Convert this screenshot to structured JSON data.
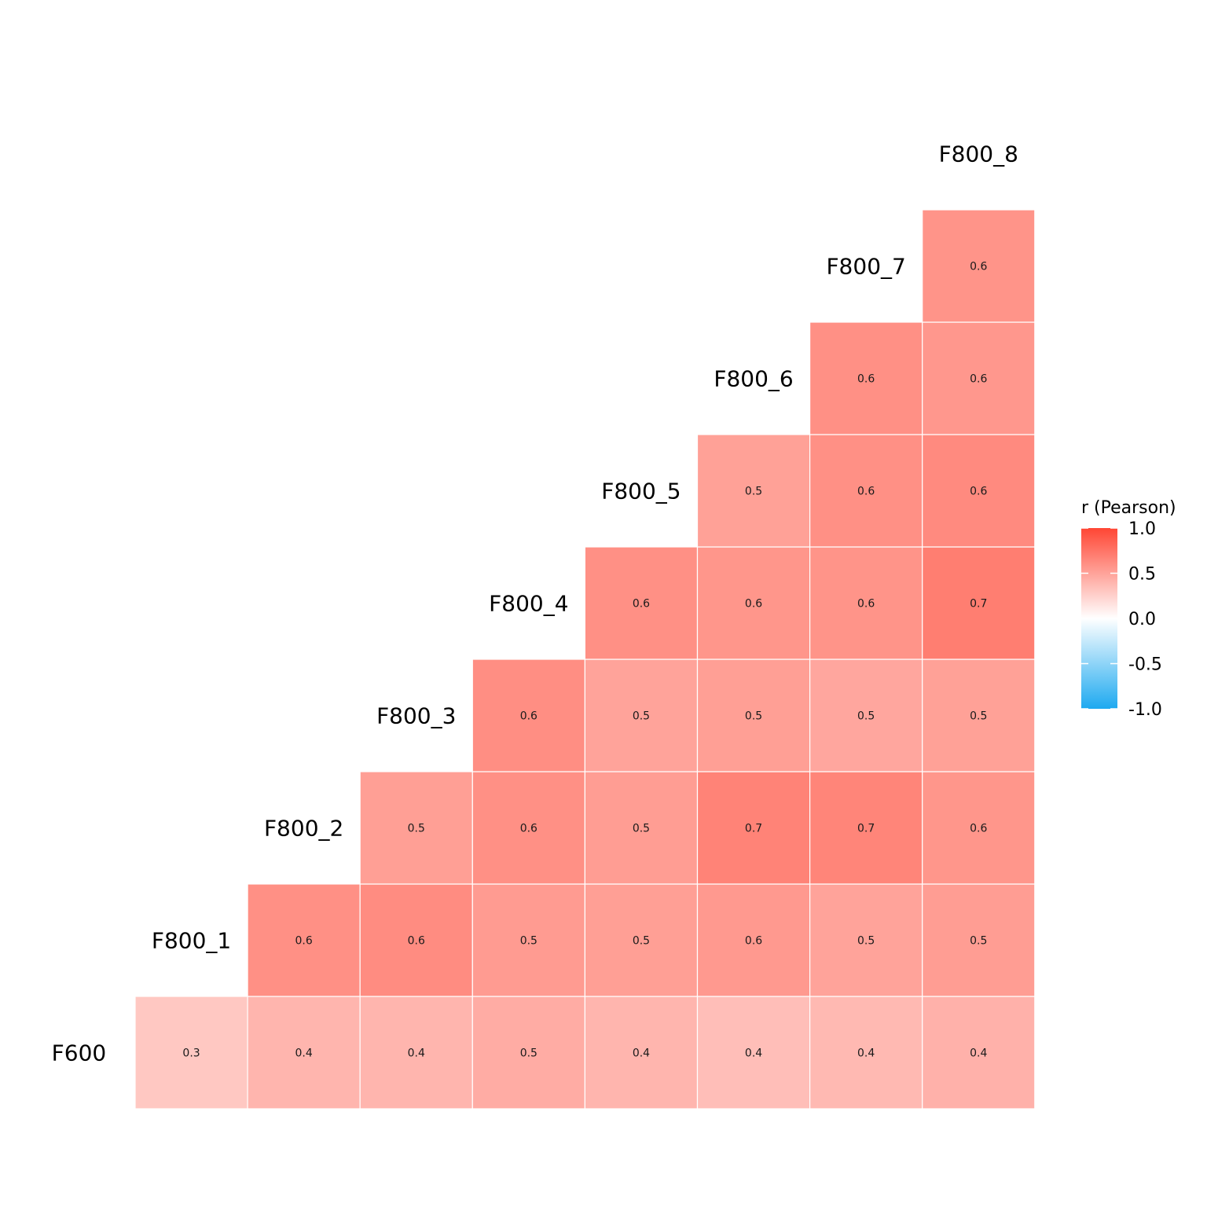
{
  "chart_data": {
    "type": "heatmap",
    "variables": [
      "F600",
      "F800_1",
      "F800_2",
      "F800_3",
      "F800_4",
      "F800_5",
      "F800_6",
      "F800_7",
      "F800_8"
    ],
    "cells": [
      {
        "row": "F600",
        "col": "F800_1",
        "value": 0.3,
        "label": "0.3"
      },
      {
        "row": "F600",
        "col": "F800_2",
        "value": 0.4,
        "label": "0.4"
      },
      {
        "row": "F600",
        "col": "F800_3",
        "value": 0.4,
        "label": "0.4"
      },
      {
        "row": "F600",
        "col": "F800_4",
        "value": 0.45,
        "label": "0.5"
      },
      {
        "row": "F600",
        "col": "F800_5",
        "value": 0.4,
        "label": "0.4"
      },
      {
        "row": "F600",
        "col": "F800_6",
        "value": 0.35,
        "label": "0.4"
      },
      {
        "row": "F600",
        "col": "F800_7",
        "value": 0.38,
        "label": "0.4"
      },
      {
        "row": "F600",
        "col": "F800_8",
        "value": 0.42,
        "label": "0.4"
      },
      {
        "row": "F800_1",
        "col": "F800_2",
        "value": 0.6,
        "label": "0.6"
      },
      {
        "row": "F800_1",
        "col": "F800_3",
        "value": 0.62,
        "label": "0.6"
      },
      {
        "row": "F800_1",
        "col": "F800_4",
        "value": 0.54,
        "label": "0.5"
      },
      {
        "row": "F800_1",
        "col": "F800_5",
        "value": 0.52,
        "label": "0.5"
      },
      {
        "row": "F800_1",
        "col": "F800_6",
        "value": 0.55,
        "label": "0.6"
      },
      {
        "row": "F800_1",
        "col": "F800_7",
        "value": 0.5,
        "label": "0.5"
      },
      {
        "row": "F800_1",
        "col": "F800_8",
        "value": 0.53,
        "label": "0.5"
      },
      {
        "row": "F800_2",
        "col": "F800_3",
        "value": 0.52,
        "label": "0.5"
      },
      {
        "row": "F800_2",
        "col": "F800_4",
        "value": 0.6,
        "label": "0.6"
      },
      {
        "row": "F800_2",
        "col": "F800_5",
        "value": 0.53,
        "label": "0.5"
      },
      {
        "row": "F800_2",
        "col": "F800_6",
        "value": 0.67,
        "label": "0.7"
      },
      {
        "row": "F800_2",
        "col": "F800_7",
        "value": 0.66,
        "label": "0.7"
      },
      {
        "row": "F800_2",
        "col": "F800_8",
        "value": 0.57,
        "label": "0.6"
      },
      {
        "row": "F800_3",
        "col": "F800_4",
        "value": 0.61,
        "label": "0.6"
      },
      {
        "row": "F800_3",
        "col": "F800_5",
        "value": 0.5,
        "label": "0.5"
      },
      {
        "row": "F800_3",
        "col": "F800_6",
        "value": 0.52,
        "label": "0.5"
      },
      {
        "row": "F800_3",
        "col": "F800_7",
        "value": 0.48,
        "label": "0.5"
      },
      {
        "row": "F800_3",
        "col": "F800_8",
        "value": 0.51,
        "label": "0.5"
      },
      {
        "row": "F800_4",
        "col": "F800_5",
        "value": 0.6,
        "label": "0.6"
      },
      {
        "row": "F800_4",
        "col": "F800_6",
        "value": 0.57,
        "label": "0.6"
      },
      {
        "row": "F800_4",
        "col": "F800_7",
        "value": 0.58,
        "label": "0.6"
      },
      {
        "row": "F800_4",
        "col": "F800_8",
        "value": 0.7,
        "label": "0.7"
      },
      {
        "row": "F800_5",
        "col": "F800_6",
        "value": 0.51,
        "label": "0.5"
      },
      {
        "row": "F800_5",
        "col": "F800_7",
        "value": 0.6,
        "label": "0.6"
      },
      {
        "row": "F800_5",
        "col": "F800_8",
        "value": 0.63,
        "label": "0.6"
      },
      {
        "row": "F800_6",
        "col": "F800_7",
        "value": 0.6,
        "label": "0.6"
      },
      {
        "row": "F800_6",
        "col": "F800_8",
        "value": 0.56,
        "label": "0.6"
      },
      {
        "row": "F800_7",
        "col": "F800_8",
        "value": 0.58,
        "label": "0.6"
      }
    ],
    "legend": {
      "title": "r (Pearson)",
      "ticks": [
        "1.0",
        "0.5",
        "0.0",
        "-0.5",
        "-1.0"
      ],
      "tick_values": [
        1.0,
        0.5,
        0.0,
        -0.5,
        -1.0
      ],
      "placement": "right",
      "colors": {
        "low": "#1da9f0",
        "mid": "#ffffff",
        "high": "#ff4634"
      },
      "range": [
        -1,
        1
      ]
    },
    "grid": false
  }
}
